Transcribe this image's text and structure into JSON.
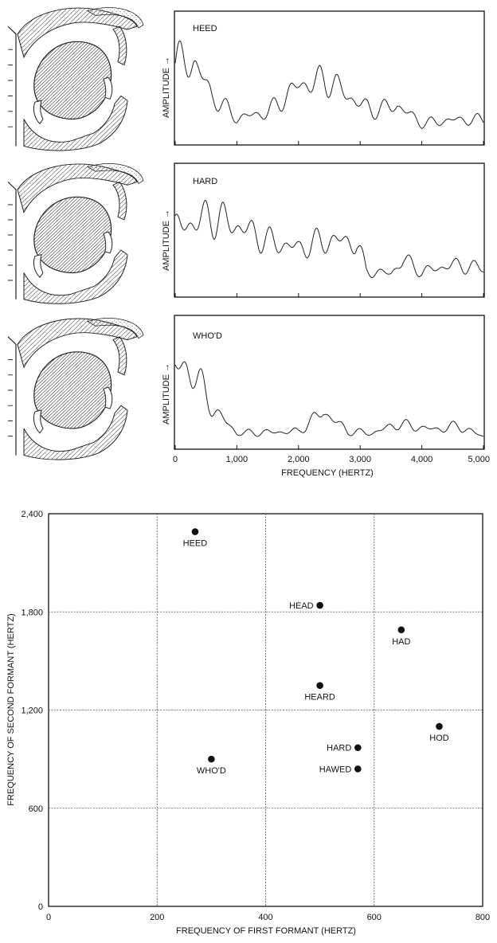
{
  "spectra": {
    "ylabel": "AMPLITUDE →",
    "xlabel": "FREQUENCY (HERTZ)",
    "x_ticks": [
      "0",
      "1,000",
      "2,000",
      "3,000",
      "4,000",
      "5,000"
    ],
    "panels": [
      {
        "label": "HEED"
      },
      {
        "label": "HARD"
      },
      {
        "label": "WHO'D"
      }
    ]
  },
  "chart_data": [
    {
      "type": "line",
      "title": "HEED",
      "xlabel": "",
      "ylabel": "AMPLITUDE →",
      "xlim": [
        0,
        5000
      ],
      "envelope": {
        "x": [
          0,
          300,
          600,
          1000,
          1500,
          2000,
          2500,
          2800,
          3200,
          3600,
          4000,
          4500,
          5000
        ],
        "y": [
          0.86,
          0.88,
          0.5,
          0.26,
          0.32,
          0.62,
          0.68,
          0.5,
          0.34,
          0.4,
          0.2,
          0.24,
          0.24
        ]
      }
    },
    {
      "type": "line",
      "title": "HARD",
      "xlabel": "",
      "ylabel": "AMPLITUDE →",
      "xlim": [
        0,
        5000
      ],
      "envelope": {
        "x": [
          0,
          600,
          1100,
          1500,
          2000,
          2400,
          2800,
          2950,
          3100,
          3500,
          3700,
          4000,
          4500,
          5000
        ],
        "y": [
          0.72,
          0.85,
          0.72,
          0.58,
          0.5,
          0.58,
          0.58,
          0.55,
          0.25,
          0.22,
          0.38,
          0.24,
          0.32,
          0.28
        ]
      }
    },
    {
      "type": "line",
      "title": "WHO'D",
      "xlabel": "FREQUENCY (HERTZ)",
      "ylabel": "AMPLITUDE →",
      "xlim": [
        0,
        5000
      ],
      "x_ticks": [
        0,
        1000,
        2000,
        3000,
        4000,
        5000
      ],
      "envelope": {
        "x": [
          0,
          300,
          600,
          1000,
          1500,
          2000,
          2400,
          2800,
          3200,
          3600,
          4200,
          4600,
          5000
        ],
        "y": [
          0.85,
          0.82,
          0.42,
          0.14,
          0.15,
          0.16,
          0.38,
          0.16,
          0.14,
          0.24,
          0.18,
          0.22,
          0.1
        ]
      }
    },
    {
      "type": "scatter",
      "xlabel": "FREQUENCY OF FIRST FORMANT (HERTZ)",
      "ylabel": "FREQUENCY OF SECOND FORMANT (HERTZ)",
      "xlim": [
        0,
        800
      ],
      "ylim": [
        0,
        2400
      ],
      "x_ticks": [
        "0",
        "200",
        "400",
        "600",
        "800"
      ],
      "y_ticks": [
        "0",
        "600",
        "1,200",
        "1,800",
        "2,400"
      ],
      "grid": true,
      "points": [
        {
          "label": "HEED",
          "x": 270,
          "y": 2290,
          "label_pos": "below"
        },
        {
          "label": "HEAD",
          "x": 500,
          "y": 1840,
          "label_pos": "left"
        },
        {
          "label": "HAD",
          "x": 650,
          "y": 1690,
          "label_pos": "below"
        },
        {
          "label": "HEARD",
          "x": 500,
          "y": 1350,
          "label_pos": "below"
        },
        {
          "label": "HOD",
          "x": 720,
          "y": 1100,
          "label_pos": "below"
        },
        {
          "label": "HARD",
          "x": 570,
          "y": 970,
          "label_pos": "left"
        },
        {
          "label": "WHO'D",
          "x": 300,
          "y": 900,
          "label_pos": "below"
        },
        {
          "label": "HAWED",
          "x": 570,
          "y": 840,
          "label_pos": "left"
        }
      ]
    }
  ]
}
